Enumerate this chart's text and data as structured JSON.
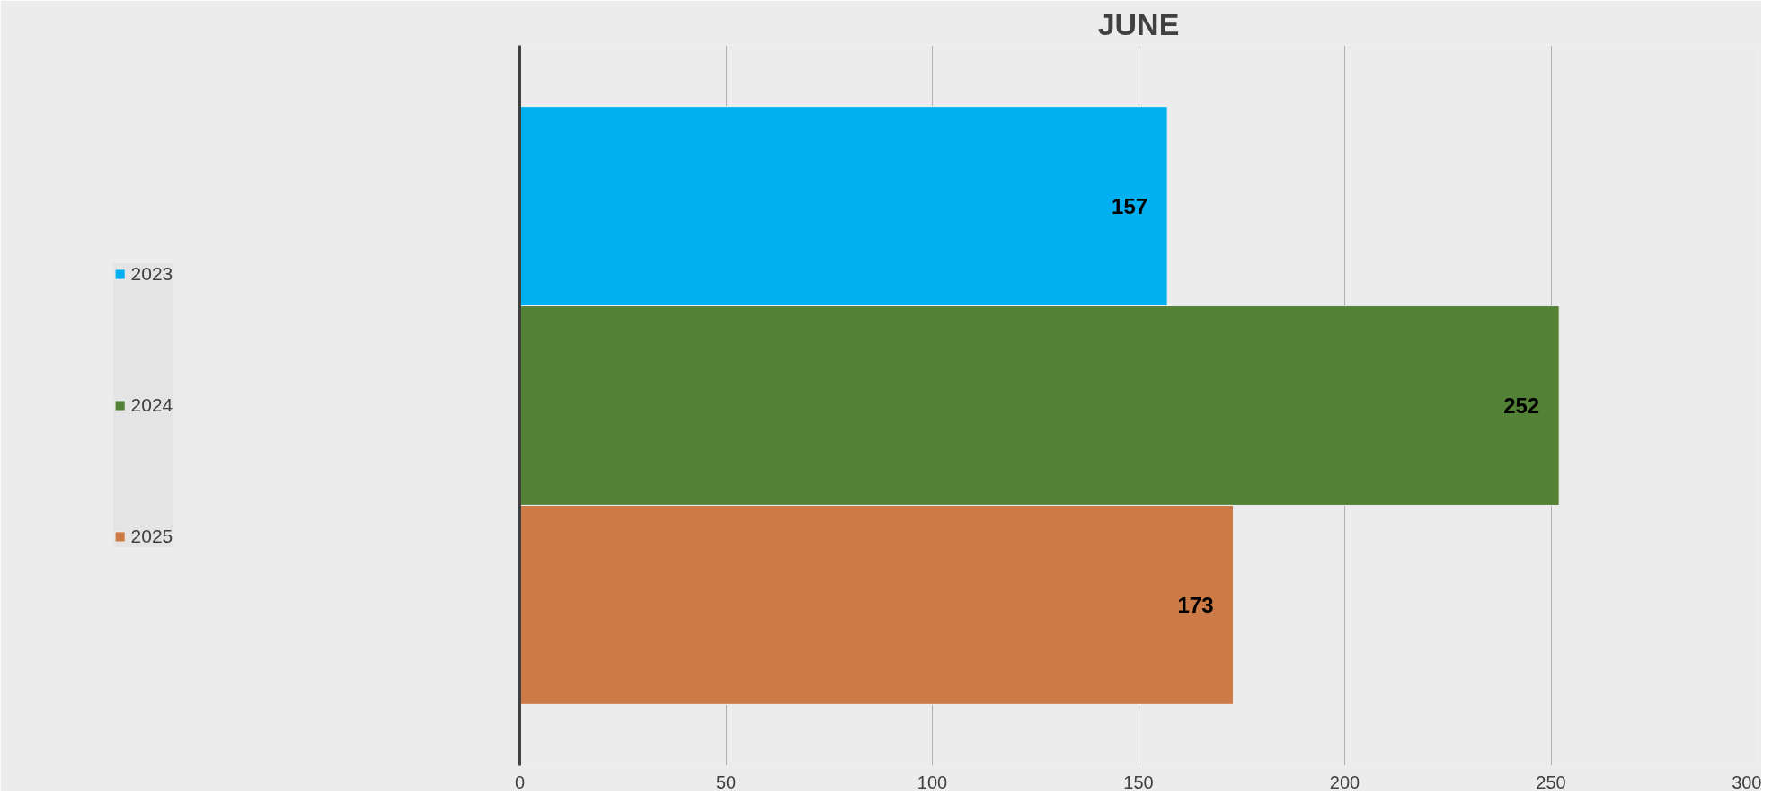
{
  "chart_data": {
    "type": "bar",
    "title": "JUNE",
    "orientation": "horizontal",
    "categories": [
      null
    ],
    "series": [
      {
        "name": "2023",
        "color": "#00b0f0",
        "values": [
          157
        ]
      },
      {
        "name": "2024",
        "color": "#538135",
        "values": [
          252
        ]
      },
      {
        "name": "2025",
        "color": "#cd7b46",
        "values": [
          173
        ]
      }
    ],
    "xlim": [
      0,
      300
    ],
    "xticks": [
      0,
      50,
      100,
      150,
      200,
      250,
      300
    ],
    "grid": "x",
    "legend": "left",
    "data_labels": true,
    "tick_labels": "x"
  }
}
